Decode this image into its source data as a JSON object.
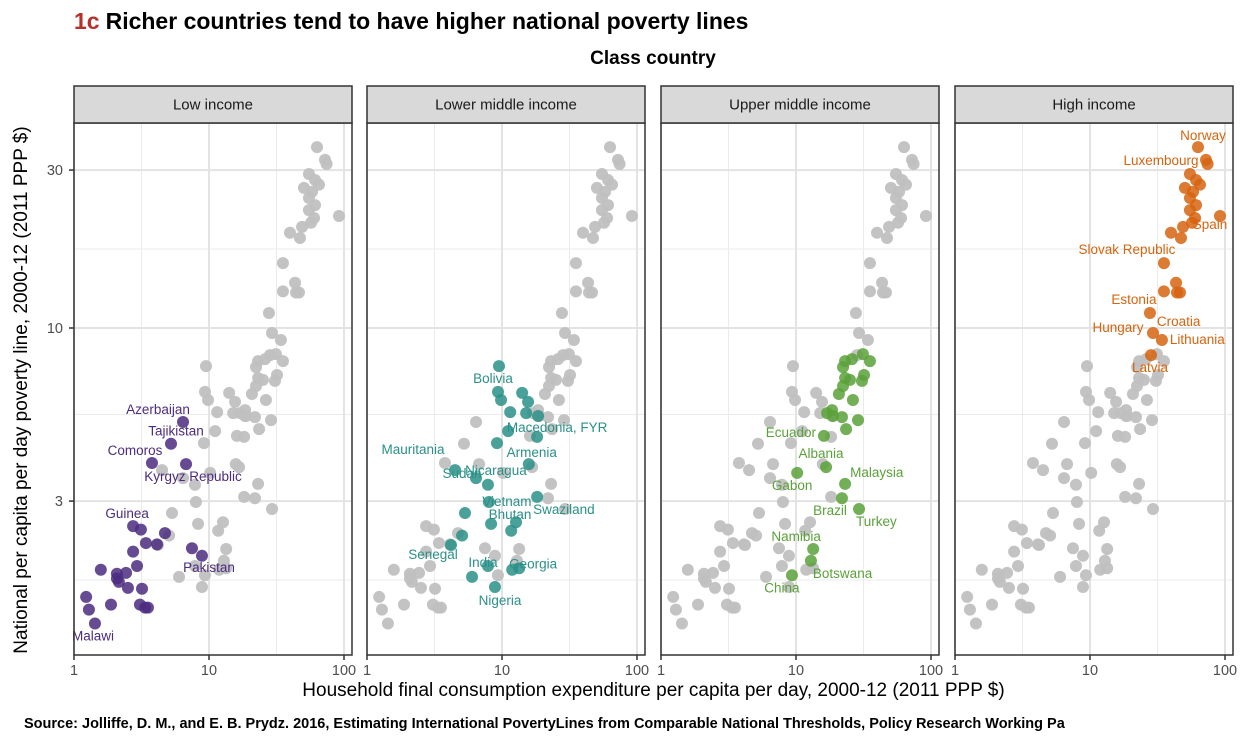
{
  "title": {
    "tag": "1c",
    "text": "Richer countries tend to have higher national poverty lines"
  },
  "source": "Source: Jolliffe, D. M., and E. B. Prydz. 2016, Estimating International PovertyLines from Comparable National Thresholds, Policy Research Working Pa",
  "chart_data": {
    "type": "scatter",
    "title": "Richer countries tend to have higher national poverty lines",
    "legend_title": "Class country",
    "xlabel": "Household final consumption expenditure per capita per day, 2000-12 (2011 PPP $)",
    "ylabel": "National per capita per day poverty line, 2000-12 (2011 PPP $)",
    "xscale": "log10",
    "yscale": "log10",
    "xlim": [
      0.95,
      120
    ],
    "ylim": [
      1.1,
      45
    ],
    "xticks": [
      1,
      10,
      100
    ],
    "xtick_labels": [
      "1",
      "10",
      "100"
    ],
    "yticks": [
      3,
      10,
      30
    ],
    "ytick_labels": [
      "3",
      "10",
      "30"
    ],
    "grid": true,
    "background_color": "#c0c0c0",
    "facets": [
      {
        "name": "Low income",
        "color": "#4b2c7f",
        "points": [
          {
            "x": 6.42,
            "y": 5.2,
            "label": "Azerbaijan"
          },
          {
            "x": 5.23,
            "y": 4.47,
            "label": "Tajikistan"
          },
          {
            "x": 3.78,
            "y": 3.91,
            "label": "Comoros"
          },
          {
            "x": 6.76,
            "y": 3.88,
            "label": "Kyrgyz Republic"
          },
          {
            "x": 2.74,
            "y": 2.52,
            "label": "Guinea"
          },
          {
            "x": 3.13,
            "y": 2.46
          },
          {
            "x": 4.72,
            "y": 2.4
          },
          {
            "x": 3.41,
            "y": 2.24
          },
          {
            "x": 4.12,
            "y": 2.22
          },
          {
            "x": 7.48,
            "y": 2.16
          },
          {
            "x": 8.87,
            "y": 2.05,
            "label": "Pakistan"
          },
          {
            "x": 2.74,
            "y": 2.11
          },
          {
            "x": 2.93,
            "y": 1.91
          },
          {
            "x": 1.58,
            "y": 1.86
          },
          {
            "x": 2.08,
            "y": 1.81
          },
          {
            "x": 2.43,
            "y": 1.82
          },
          {
            "x": 2.08,
            "y": 1.75
          },
          {
            "x": 2.15,
            "y": 1.71
          },
          {
            "x": 2.51,
            "y": 1.64
          },
          {
            "x": 3.19,
            "y": 1.63
          },
          {
            "x": 1.23,
            "y": 1.54
          },
          {
            "x": 1.29,
            "y": 1.41
          },
          {
            "x": 1.88,
            "y": 1.46
          },
          {
            "x": 3.08,
            "y": 1.46
          },
          {
            "x": 3.36,
            "y": 1.43
          },
          {
            "x": 3.53,
            "y": 1.43
          },
          {
            "x": 1.43,
            "y": 1.28,
            "label": "Malawi"
          }
        ]
      },
      {
        "name": "Lower middle income",
        "color": "#2a9088",
        "points": [
          {
            "x": 9.5,
            "y": 7.67,
            "label": "Bolivia"
          },
          {
            "x": 9.34,
            "y": 6.41
          },
          {
            "x": 9.84,
            "y": 6.06
          },
          {
            "x": 14.1,
            "y": 6.37
          },
          {
            "x": 15.6,
            "y": 5.98
          },
          {
            "x": 11.5,
            "y": 5.57
          },
          {
            "x": 15.1,
            "y": 5.53
          },
          {
            "x": 18.5,
            "y": 5.42
          },
          {
            "x": 11.1,
            "y": 4.88
          },
          {
            "x": 18.2,
            "y": 4.69,
            "label": "Macedonia, FYR"
          },
          {
            "x": 9.18,
            "y": 4.49
          },
          {
            "x": 15.8,
            "y": 3.88,
            "label": "Armenia"
          },
          {
            "x": 4.49,
            "y": 3.72,
            "label": "Mauritania"
          },
          {
            "x": 6.42,
            "y": 3.52,
            "label": "Sudan"
          },
          {
            "x": 7.87,
            "y": 3.36,
            "label": "Nicaragua"
          },
          {
            "x": 18.2,
            "y": 3.09,
            "label": "Swaziland"
          },
          {
            "x": 8.0,
            "y": 2.98,
            "label": "Vietnam"
          },
          {
            "x": 5.32,
            "y": 2.76
          },
          {
            "x": 8.3,
            "y": 2.56
          },
          {
            "x": 12.7,
            "y": 2.59,
            "label": "Bhutan"
          },
          {
            "x": 11.7,
            "y": 2.44
          },
          {
            "x": 5.06,
            "y": 2.36
          },
          {
            "x": 4.19,
            "y": 2.21,
            "label": "Senegal"
          },
          {
            "x": 7.87,
            "y": 1.91,
            "label": "India"
          },
          {
            "x": 11.9,
            "y": 1.86
          },
          {
            "x": 13.4,
            "y": 1.88,
            "label": "Georgia"
          },
          {
            "x": 6.0,
            "y": 1.77
          },
          {
            "x": 8.87,
            "y": 1.65,
            "label": "Nigeria"
          }
        ]
      },
      {
        "name": "Upper middle income",
        "color": "#5aa13a",
        "points": [
          {
            "x": 23.1,
            "y": 7.94
          },
          {
            "x": 26.0,
            "y": 8.05
          },
          {
            "x": 31.3,
            "y": 8.34
          },
          {
            "x": 35.3,
            "y": 7.94
          },
          {
            "x": 22.3,
            "y": 7.62
          },
          {
            "x": 23.1,
            "y": 7.06
          },
          {
            "x": 25.1,
            "y": 6.97
          },
          {
            "x": 31.9,
            "y": 7.21
          },
          {
            "x": 30.8,
            "y": 6.92
          },
          {
            "x": 22.3,
            "y": 6.68
          },
          {
            "x": 20.8,
            "y": 6.32
          },
          {
            "x": 26.4,
            "y": 6.06
          },
          {
            "x": 17.0,
            "y": 5.53
          },
          {
            "x": 18.5,
            "y": 5.65
          },
          {
            "x": 18.8,
            "y": 5.42
          },
          {
            "x": 21.9,
            "y": 5.38
          },
          {
            "x": 28.8,
            "y": 5.27
          },
          {
            "x": 23.5,
            "y": 4.95
          },
          {
            "x": 16.1,
            "y": 4.72,
            "label": "Ecuador"
          },
          {
            "x": 16.7,
            "y": 3.8,
            "label": "Albania"
          },
          {
            "x": 10.2,
            "y": 3.65,
            "label": "Gabon"
          },
          {
            "x": 23.1,
            "y": 3.38,
            "label": "Malaysia"
          },
          {
            "x": 21.9,
            "y": 3.06,
            "label": "Brazil"
          },
          {
            "x": 29.3,
            "y": 2.84,
            "label": "Turkey"
          },
          {
            "x": 13.4,
            "y": 2.15,
            "label": "Namibia"
          },
          {
            "x": 12.9,
            "y": 1.98,
            "label": "Botswana"
          },
          {
            "x": 9.33,
            "y": 1.79,
            "label": "China"
          }
        ]
      },
      {
        "name": "High income",
        "color": "#d6640f",
        "points": [
          {
            "x": 63.1,
            "y": 35.2,
            "label": "Norway"
          },
          {
            "x": 72.3,
            "y": 32.2,
            "label": "Luxembourg"
          },
          {
            "x": 74.3,
            "y": 31.3
          },
          {
            "x": 55.0,
            "y": 29.2
          },
          {
            "x": 61.0,
            "y": 28.0
          },
          {
            "x": 65.3,
            "y": 27.1
          },
          {
            "x": 50.5,
            "y": 26.5
          },
          {
            "x": 58.0,
            "y": 25.8
          },
          {
            "x": 55.0,
            "y": 24.7
          },
          {
            "x": 61.0,
            "y": 23.5
          },
          {
            "x": 55.0,
            "y": 22.7
          },
          {
            "x": 60.0,
            "y": 21.5
          },
          {
            "x": 57.0,
            "y": 20.8
          },
          {
            "x": 48.9,
            "y": 20.2
          },
          {
            "x": 91.8,
            "y": 21.8
          },
          {
            "x": 39.8,
            "y": 19.4
          },
          {
            "x": 47.2,
            "y": 18.7,
            "label": "Spain"
          },
          {
            "x": 35.3,
            "y": 15.7,
            "label": "Slovak Republic"
          },
          {
            "x": 43.4,
            "y": 13.7
          },
          {
            "x": 44.1,
            "y": 12.8
          },
          {
            "x": 46.4,
            "y": 12.8
          },
          {
            "x": 35.3,
            "y": 12.9
          },
          {
            "x": 27.8,
            "y": 11.1,
            "label": "Estonia"
          },
          {
            "x": 29.3,
            "y": 9.66,
            "label": "Hungary"
          },
          {
            "x": 34.1,
            "y": 9.2,
            "label": "Lithuania"
          },
          {
            "x": 28.3,
            "y": 8.28,
            "label": "Latvia"
          }
        ]
      }
    ]
  }
}
